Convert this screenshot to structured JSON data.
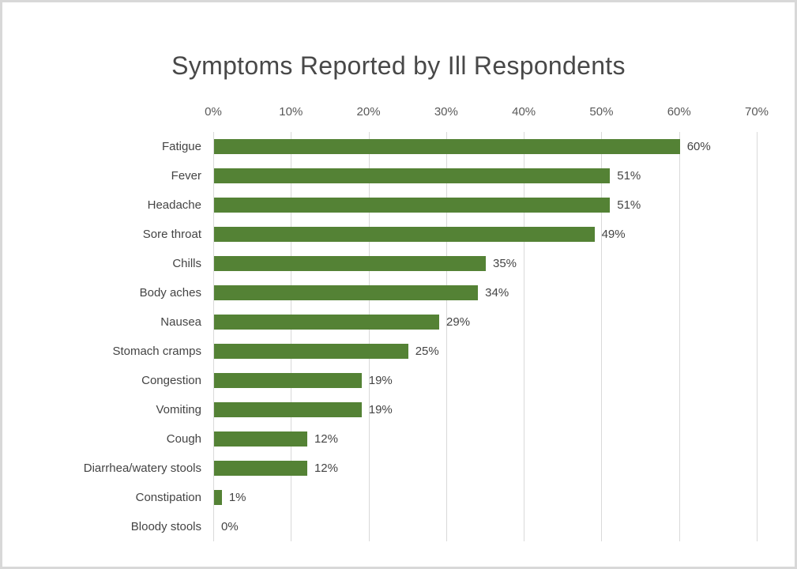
{
  "chart_data": {
    "type": "bar",
    "orientation": "horizontal",
    "title": "Symptoms Reported by Ill Respondents",
    "categories": [
      "Fatigue",
      "Fever",
      "Headache",
      "Sore throat",
      "Chills",
      "Body aches",
      "Nausea",
      "Stomach cramps",
      "Congestion",
      "Vomiting",
      "Cough",
      "Diarrhea/watery stools",
      "Constipation",
      "Bloody stools"
    ],
    "values": [
      60,
      51,
      51,
      49,
      35,
      34,
      29,
      25,
      19,
      19,
      12,
      12,
      1,
      0
    ],
    "value_labels": [
      "60%",
      "51%",
      "51%",
      "49%",
      "35%",
      "34%",
      "29%",
      "25%",
      "19%",
      "19%",
      "12%",
      "12%",
      "1%",
      "0%"
    ],
    "x_ticks": [
      "0%",
      "10%",
      "20%",
      "30%",
      "40%",
      "50%",
      "60%",
      "70%"
    ],
    "x_tick_values": [
      0,
      10,
      20,
      30,
      40,
      50,
      60,
      70
    ],
    "xlim": [
      0,
      70
    ],
    "xlabel": "",
    "ylabel": "",
    "grid": true,
    "legend": false,
    "colors": {
      "bar": "#548235",
      "gridline": "#d9d9d9",
      "title_text": "#484848",
      "tick_text": "#595959",
      "label_text": "#444444",
      "background": "#ffffff",
      "border": "#d8d8d8"
    }
  }
}
